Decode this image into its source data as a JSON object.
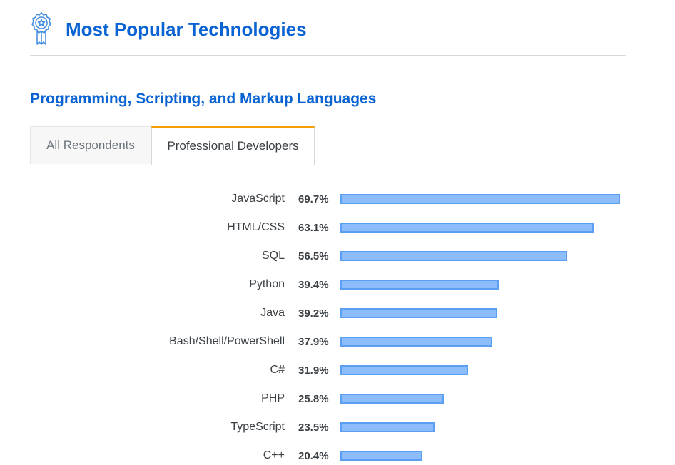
{
  "header": {
    "title": "Most Popular Technologies",
    "icon": "award-ribbon-icon"
  },
  "section": {
    "title": "Programming, Scripting, and Markup Languages"
  },
  "tabs": [
    {
      "label": "All Respondents",
      "active": false
    },
    {
      "label": "Professional Developers",
      "active": true
    }
  ],
  "colors": {
    "title": "#0a63d2",
    "bar_fill": "#8cbcf9",
    "bar_border": "#5a9ff2",
    "active_tab_accent": "#f29f05",
    "text": "#3b4045"
  },
  "chart_data": {
    "type": "bar",
    "orientation": "horizontal",
    "categories": [
      "JavaScript",
      "HTML/CSS",
      "SQL",
      "Python",
      "Java",
      "Bash/Shell/PowerShell",
      "C#",
      "PHP",
      "TypeScript",
      "C++"
    ],
    "values": [
      69.7,
      63.1,
      56.5,
      39.4,
      39.2,
      37.9,
      31.9,
      25.8,
      23.5,
      20.4
    ],
    "value_labels": [
      "69.7%",
      "63.1%",
      "56.5%",
      "39.4%",
      "39.2%",
      "37.9%",
      "31.9%",
      "25.8%",
      "23.5%",
      "20.4%"
    ],
    "unit": "%",
    "xlim": [
      0,
      69.7
    ],
    "grid": false,
    "legend": "none"
  }
}
